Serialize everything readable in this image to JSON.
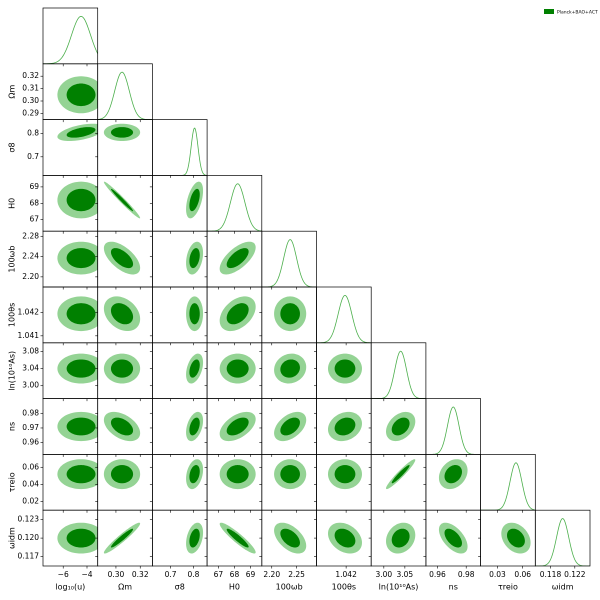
{
  "chart_data": {
    "type": "corner",
    "legend": "Planck+BAO+ACT",
    "color": "#008000",
    "light_color": "#94d394",
    "line_color": "#4caf4c",
    "parameters": [
      {
        "label": "log₁₀(u)",
        "mean": -4.5,
        "sigma": 0.8,
        "lim": [
          -7.7,
          -3.1
        ],
        "xticks": [
          {
            "value": -6,
            "label": "−6"
          },
          {
            "value": -4,
            "label": "−4"
          }
        ]
      },
      {
        "label": "Ωm",
        "mean": 0.305,
        "sigma": 0.006,
        "lim": [
          0.285,
          0.33
        ],
        "xticks": [
          {
            "value": 0.3,
            "label": "0.30"
          },
          0.32
        ],
        "yticks": [
          0.29,
          {
            "value": 0.3,
            "label": "0.30"
          },
          0.31,
          0.32
        ]
      },
      {
        "label": "σ8",
        "mean": 0.805,
        "sigma": 0.015,
        "lim": [
          0.62,
          0.86
        ],
        "xticks": [
          0.7,
          0.8
        ],
        "yticks": [
          0.7,
          0.8
        ]
      },
      {
        "label": "H0",
        "mean": 68.2,
        "sigma": 0.45,
        "lim": [
          66.3,
          69.7
        ],
        "xticks": [
          67,
          68,
          69
        ],
        "yticks": [
          67,
          68,
          69
        ]
      },
      {
        "label": "100ωb",
        "mean": 2.237,
        "sigma": 0.013,
        "lim": [
          2.18,
          2.29
        ],
        "xticks": [
          {
            "value": 2.2,
            "label": "2.20"
          },
          2.25
        ],
        "yticks": [
          {
            "value": 2.2,
            "label": "2.20"
          },
          2.24,
          2.28
        ]
      },
      {
        "label": "100θs",
        "mean": 1.04195,
        "sigma": 0.0003,
        "lim": [
          1.0407,
          1.0431
        ],
        "xticks": [
          1.042
        ],
        "yticks": [
          1.041,
          1.042
        ]
      },
      {
        "label": "ln(10¹⁰As)",
        "mean": 3.04,
        "sigma": 0.014,
        "lim": [
          2.97,
          3.1
        ],
        "xticks": [
          {
            "value": 3,
            "label": "3.00"
          },
          3.05
        ],
        "yticks": [
          {
            "value": 3,
            "label": "3.00"
          },
          3.04,
          3.08
        ]
      },
      {
        "label": "ns",
        "mean": 0.971,
        "sigma": 0.004,
        "lim": [
          0.952,
          0.99
        ],
        "xticks": [
          0.96,
          0.98
        ],
        "yticks": [
          0.96,
          0.97,
          0.98
        ]
      },
      {
        "label": "τreio",
        "mean": 0.052,
        "sigma": 0.007,
        "lim": [
          0.01,
          0.075
        ],
        "xticks": [
          0.03,
          0.06
        ],
        "yticks": [
          0.02,
          0.04,
          0.06
        ]
      },
      {
        "label": "ωidm",
        "mean": 0.12,
        "sigma": 0.001,
        "lim": [
          0.1155,
          0.1245
        ],
        "xticks": [
          0.118,
          0.122
        ],
        "yticks": [
          0.117,
          {
            "value": 0.12,
            "label": "0.120"
          },
          0.123
        ]
      }
    ],
    "correlations": [
      {
        "pair": [
          2,
          0
        ],
        "r": 0.5
      },
      {
        "pair": [
          3,
          1
        ],
        "r": -0.98
      },
      {
        "pair": [
          3,
          2
        ],
        "r": 0.5
      },
      {
        "pair": [
          4,
          1
        ],
        "r": -0.6
      },
      {
        "pair": [
          4,
          3
        ],
        "r": 0.65
      },
      {
        "pair": [
          4,
          2
        ],
        "r": 0.3
      },
      {
        "pair": [
          5,
          1
        ],
        "r": -0.3
      },
      {
        "pair": [
          5,
          3
        ],
        "r": 0.4
      },
      {
        "pair": [
          6,
          2
        ],
        "r": 0.4
      },
      {
        "pair": [
          6,
          4
        ],
        "r": 0.1
      },
      {
        "pair": [
          7,
          1
        ],
        "r": -0.45
      },
      {
        "pair": [
          7,
          2
        ],
        "r": 0.4
      },
      {
        "pair": [
          7,
          3
        ],
        "r": 0.5
      },
      {
        "pair": [
          7,
          4
        ],
        "r": 0.45
      },
      {
        "pair": [
          7,
          5
        ],
        "r": 0.2
      },
      {
        "pair": [
          7,
          6
        ],
        "r": 0.35
      },
      {
        "pair": [
          8,
          2
        ],
        "r": 0.3
      },
      {
        "pair": [
          8,
          6
        ],
        "r": 0.95
      },
      {
        "pair": [
          8,
          7
        ],
        "r": 0.25
      },
      {
        "pair": [
          9,
          1
        ],
        "r": 0.95
      },
      {
        "pair": [
          9,
          2
        ],
        "r": 0.35
      },
      {
        "pair": [
          9,
          3
        ],
        "r": -0.92
      },
      {
        "pair": [
          9,
          4
        ],
        "r": -0.5
      },
      {
        "pair": [
          9,
          5
        ],
        "r": -0.3
      },
      {
        "pair": [
          9,
          6
        ],
        "r": 0.2
      },
      {
        "pair": [
          9,
          7
        ],
        "r": -0.55
      },
      {
        "pair": [
          9,
          8
        ],
        "r": -0.3
      }
    ]
  }
}
